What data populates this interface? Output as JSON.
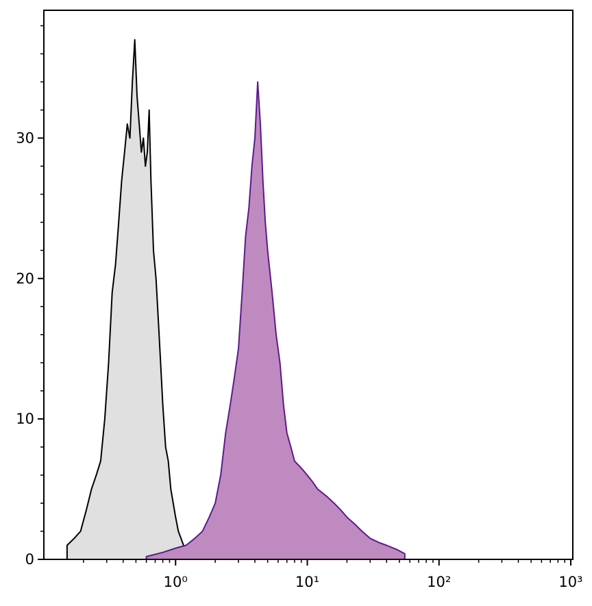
{
  "chart_data": {
    "type": "histogram-overlay",
    "xlog": true,
    "xlim": [
      0.1,
      1000
    ],
    "ylim": [
      0,
      39.1
    ],
    "xticks": [
      {
        "value": 1,
        "label": "10⁰"
      },
      {
        "value": 10,
        "label": "10¹"
      },
      {
        "value": 100,
        "label": "10²"
      },
      {
        "value": 1000,
        "label": "10³"
      }
    ],
    "xminorticks": [
      0.2,
      0.3,
      0.4,
      0.5,
      0.6,
      0.7,
      0.8,
      0.9,
      2,
      3,
      4,
      5,
      6,
      7,
      8,
      9,
      20,
      30,
      40,
      50,
      60,
      70,
      80,
      90,
      200,
      300,
      400,
      500,
      600,
      700,
      800,
      900
    ],
    "yticks": [
      0,
      10,
      20,
      30
    ],
    "yminorticks": [
      2,
      4,
      6,
      8,
      12,
      14,
      16,
      18,
      22,
      24,
      26,
      28,
      32,
      34,
      36,
      38
    ],
    "series": [
      {
        "color": "#e0e0e0",
        "line_color": "#000000",
        "x": [
          0.15,
          0.17,
          0.19,
          0.21,
          0.23,
          0.25,
          0.27,
          0.29,
          0.31,
          0.33,
          0.35,
          0.37,
          0.39,
          0.41,
          0.43,
          0.45,
          0.47,
          0.49,
          0.51,
          0.53,
          0.55,
          0.57,
          0.59,
          0.61,
          0.63,
          0.65,
          0.68,
          0.71,
          0.74,
          0.77,
          0.8,
          0.84,
          0.88,
          0.92,
          0.96,
          1.0,
          1.05,
          1.1,
          1.15,
          1.2,
          1.3
        ],
        "values": [
          1,
          1.5,
          2,
          3.5,
          5,
          6,
          7,
          10,
          14,
          19,
          21,
          24,
          27,
          29,
          31,
          30,
          34,
          37,
          33,
          31,
          29,
          30,
          28,
          29,
          32,
          27,
          22,
          20,
          17,
          14,
          11,
          8,
          7,
          5,
          4,
          3,
          2,
          1.5,
          1,
          0.5,
          0
        ]
      },
      {
        "color": "#bf8abf",
        "line_color": "#5b1a8a",
        "x": [
          0.6,
          0.8,
          1.0,
          1.2,
          1.4,
          1.6,
          1.8,
          2.0,
          2.2,
          2.4,
          2.6,
          2.8,
          3.0,
          3.2,
          3.4,
          3.6,
          3.8,
          4.0,
          4.2,
          4.4,
          4.6,
          4.8,
          5.0,
          5.4,
          5.8,
          6.2,
          6.6,
          7.0,
          7.5,
          8,
          9,
          10,
          11,
          12,
          14,
          16,
          18,
          20,
          23,
          26,
          30,
          35,
          40,
          48,
          55
        ],
        "values": [
          0.2,
          0.5,
          0.8,
          1,
          1.5,
          2,
          3,
          4,
          6,
          9,
          11,
          13,
          15,
          19,
          23,
          25,
          28,
          30,
          34,
          31,
          27,
          24,
          22,
          19,
          16,
          14,
          11,
          9,
          8,
          7,
          6.5,
          6,
          5.5,
          5,
          4.5,
          4,
          3.5,
          3,
          2.5,
          2,
          1.5,
          1.2,
          1,
          0.7,
          0.4
        ]
      }
    ]
  }
}
